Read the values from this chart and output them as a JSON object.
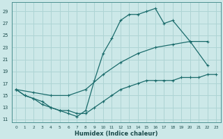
{
  "xlabel": "Humidex (Indice chaleur)",
  "bg_color": "#cce8e8",
  "grid_color": "#aed4d4",
  "line_color": "#1a6b6b",
  "xlim": [
    -0.5,
    23.5
  ],
  "ylim": [
    10.5,
    30.5
  ],
  "xticks": [
    0,
    1,
    2,
    3,
    4,
    5,
    6,
    7,
    8,
    9,
    10,
    11,
    12,
    13,
    14,
    15,
    16,
    17,
    18,
    19,
    20,
    21,
    22,
    23
  ],
  "yticks": [
    11,
    13,
    15,
    17,
    19,
    21,
    23,
    25,
    27,
    29
  ],
  "line1_x": [
    0,
    1,
    2,
    3,
    4,
    5,
    6,
    7,
    8,
    9,
    10,
    11,
    12,
    13,
    14,
    15,
    16,
    17,
    18,
    19,
    20,
    21,
    22,
    23
  ],
  "line1_y": [
    16,
    15,
    14.5,
    14.0,
    13.0,
    12.5,
    12.5,
    12.0,
    12.0,
    13.0,
    14.0,
    15.0,
    16.0,
    16.5,
    17.0,
    17.5,
    17.5,
    17.5,
    17.5,
    18.0,
    18.0,
    18.0,
    18.5,
    18.5
  ],
  "line2_x": [
    0,
    1,
    2,
    3,
    4,
    5,
    6,
    7,
    8,
    9,
    10,
    11,
    12,
    13,
    14,
    15,
    16,
    17,
    18,
    20,
    22
  ],
  "line2_y": [
    16,
    15,
    14.5,
    13.5,
    13.0,
    12.5,
    12.0,
    11.5,
    12.5,
    17.5,
    22.0,
    24.5,
    27.5,
    28.5,
    28.5,
    29.0,
    29.5,
    27.0,
    27.5,
    24.0,
    20.0
  ],
  "line3_x": [
    0,
    2,
    4,
    6,
    8,
    10,
    12,
    14,
    16,
    18,
    20,
    22
  ],
  "line3_y": [
    16,
    15.5,
    15.0,
    15.0,
    16.0,
    18.5,
    20.5,
    22.0,
    23.0,
    23.5,
    24.0,
    24.0
  ]
}
